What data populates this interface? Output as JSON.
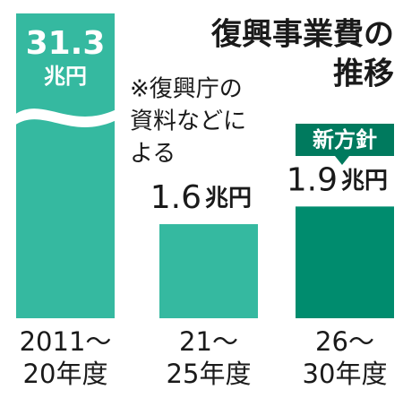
{
  "chart_data": {
    "type": "bar",
    "title": [
      "復興事業費の",
      "推移"
    ],
    "note": [
      "※復興庁の",
      "資料などに",
      "よる"
    ],
    "categories": [
      [
        "2011～",
        "20年度"
      ],
      [
        "21～",
        "25年度"
      ],
      [
        "26～",
        "30年度"
      ]
    ],
    "values": [
      31.3,
      1.6,
      1.9
    ],
    "value_labels": [
      "31.3",
      "1.6",
      "1.9"
    ],
    "unit": "兆円",
    "colors": [
      "#35b9a0",
      "#35b9a0",
      "#008c6e"
    ],
    "annotation": {
      "text": "新方針",
      "category": 2
    }
  }
}
